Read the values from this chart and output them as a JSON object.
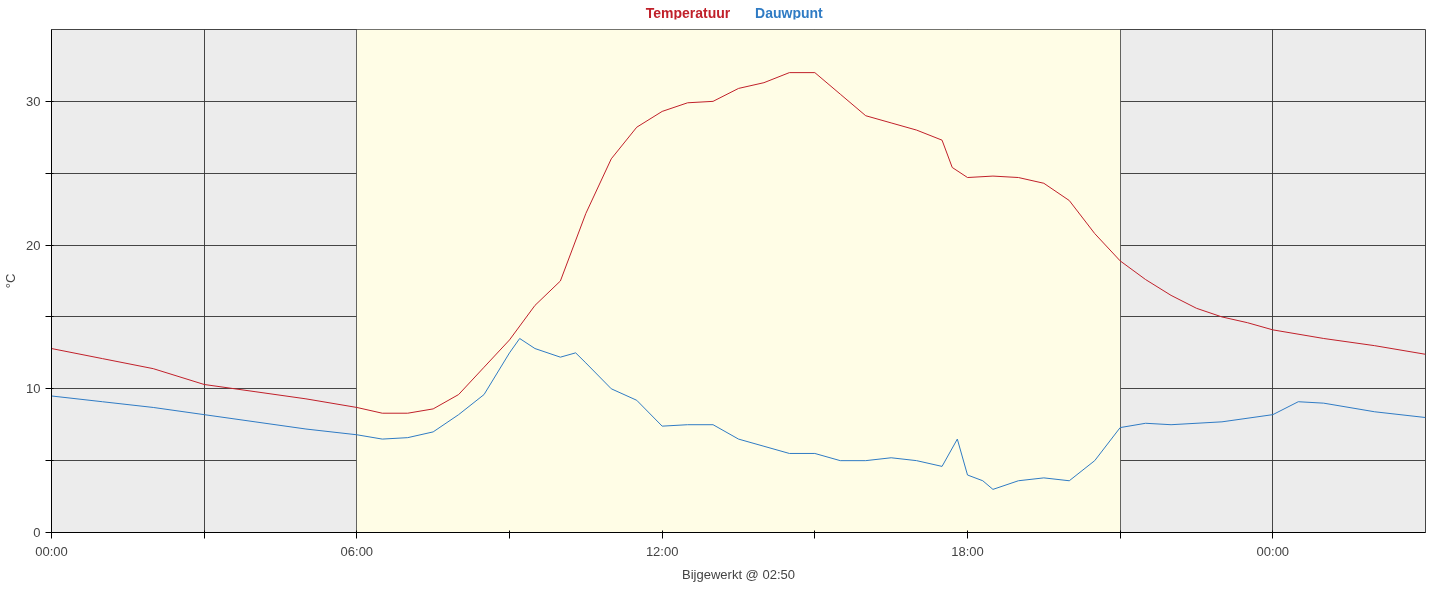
{
  "chart_data": {
    "type": "line",
    "ylabel": "°C",
    "xlabel": "Bijgewerkt @ 02:50",
    "legend": "top",
    "grid": true,
    "marker": "none",
    "line_style": "solid",
    "xlim": [
      0,
      27
    ],
    "ylim": [
      0,
      35
    ],
    "xticks": [
      {
        "value": 0,
        "label": "00:00"
      },
      {
        "value": 3,
        "label": null
      },
      {
        "value": 6,
        "label": "06:00"
      },
      {
        "value": 9,
        "label": null
      },
      {
        "value": 12,
        "label": "12:00"
      },
      {
        "value": 15,
        "label": null
      },
      {
        "value": 18,
        "label": "18:00"
      },
      {
        "value": 21,
        "label": null
      },
      {
        "value": 24,
        "label": "00:00"
      }
    ],
    "yticks": [
      0,
      {
        "value": 5,
        "label": null
      },
      10,
      {
        "value": 15,
        "label": null
      },
      20,
      {
        "value": 25,
        "label": null
      },
      30
    ],
    "bands": [
      {
        "axis": "x",
        "from": 6,
        "to": 21,
        "color": "#fffde6"
      }
    ],
    "series": [
      {
        "name": "Temperatuur",
        "color": "#c0202a",
        "x": [
          0,
          1,
          2,
          3,
          4,
          5,
          6,
          6.5,
          7,
          7.5,
          8,
          8.5,
          9,
          9.5,
          10,
          10.5,
          11,
          11.5,
          12,
          12.5,
          13,
          13.5,
          14,
          14.5,
          15,
          15.5,
          16,
          16.5,
          17,
          17.5,
          17.7,
          18,
          18.5,
          19,
          19.5,
          20,
          20.5,
          21,
          21.5,
          22,
          22.5,
          23,
          23.5,
          24,
          25,
          26,
          27
        ],
        "values": [
          12.8,
          12.1,
          11.4,
          10.3,
          9.8,
          9.3,
          8.7,
          8.3,
          8.3,
          8.6,
          9.6,
          11.5,
          13.4,
          15.8,
          17.5,
          22.2,
          26,
          28.2,
          29.3,
          29.9,
          30,
          30.9,
          31.3,
          32,
          32,
          30.5,
          29,
          28.5,
          28,
          27.3,
          25.4,
          24.7,
          24.8,
          24.7,
          24.3,
          23.1,
          20.8,
          18.9,
          17.6,
          16.5,
          15.6,
          15,
          14.6,
          14.1,
          13.5,
          13,
          12.4
        ]
      },
      {
        "name": "Dauwpunt",
        "color": "#2f7bc4",
        "x": [
          0,
          1,
          2,
          3,
          4,
          5,
          6,
          6.5,
          7,
          7.5,
          8,
          8.5,
          9,
          9.2,
          9.5,
          10,
          10.3,
          10.5,
          11,
          11.5,
          12,
          12.5,
          13,
          13.5,
          14,
          14.5,
          15,
          15.5,
          16,
          16.5,
          17,
          17.5,
          17.8,
          18,
          18.3,
          18.5,
          19,
          19.5,
          20,
          20.5,
          21,
          21.5,
          22,
          23,
          24,
          24.5,
          25,
          26,
          27
        ],
        "values": [
          9.5,
          9.1,
          8.7,
          8.2,
          7.7,
          7.2,
          6.8,
          6.5,
          6.6,
          7,
          8.2,
          9.6,
          12.5,
          13.5,
          12.8,
          12.2,
          12.5,
          11.8,
          10,
          9.2,
          7.4,
          7.5,
          7.5,
          6.5,
          6,
          5.5,
          5.5,
          5,
          5,
          5.2,
          5,
          4.6,
          6.5,
          4,
          3.6,
          3,
          3.6,
          3.8,
          3.6,
          5,
          7.3,
          7.6,
          7.5,
          7.7,
          8.2,
          9.1,
          9,
          8.4,
          8
        ]
      }
    ]
  }
}
